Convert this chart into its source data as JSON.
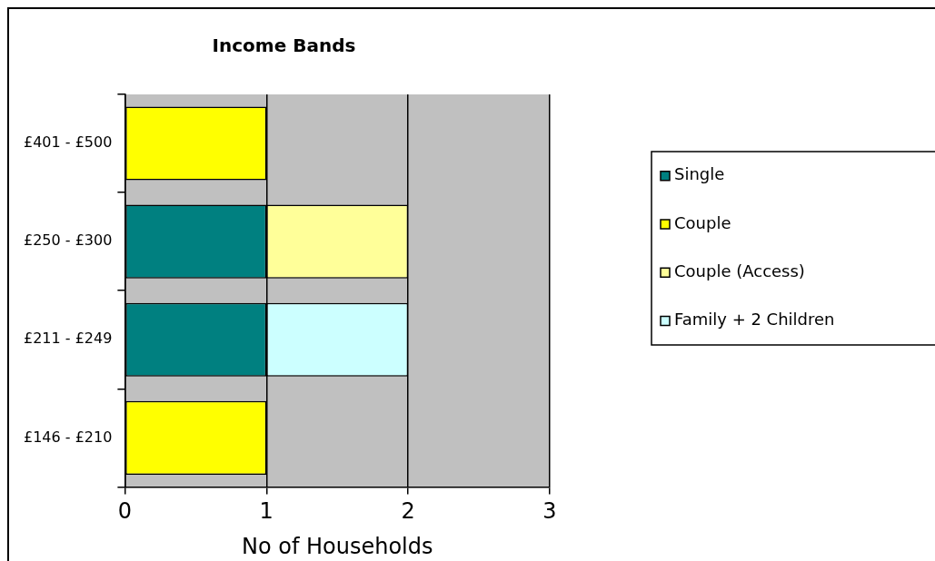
{
  "chart_data": {
    "type": "bar",
    "orientation": "horizontal",
    "stacked": true,
    "title": "Income Bands",
    "xlabel": "No of Households",
    "categories": [
      "£401 - £500",
      "£250 - £300",
      "£211 - £249",
      "£146 - £210"
    ],
    "series": [
      {
        "name": "Single",
        "color": "#008080",
        "values": [
          null,
          1,
          1,
          null
        ]
      },
      {
        "name": "Couple",
        "color": "#ffff00",
        "values": [
          1,
          null,
          null,
          1
        ]
      },
      {
        "name": "Couple (Access)",
        "color": "#ffff99",
        "values": [
          null,
          1,
          null,
          null
        ]
      },
      {
        "name": "Family + 2 Children",
        "color": "#ccffff",
        "values": [
          null,
          null,
          1,
          null
        ]
      }
    ],
    "xlim": [
      0,
      3
    ],
    "xticks": [
      0,
      1,
      2,
      3
    ],
    "grid": "x",
    "legend": "right"
  }
}
